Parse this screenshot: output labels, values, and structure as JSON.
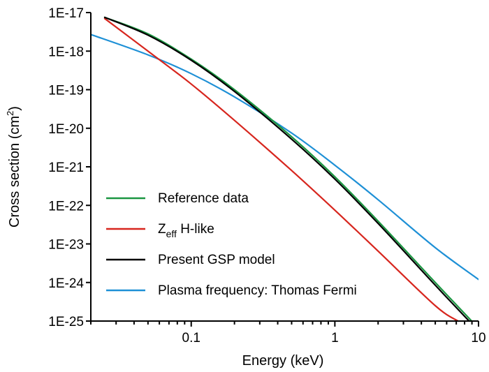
{
  "chart_data": {
    "type": "line",
    "xlabel": "Energy (keV)",
    "ylabel": {
      "prefix": "Cross section (cm",
      "sup": "2",
      "suffix": ")"
    },
    "x_scale": "log",
    "y_scale": "log",
    "xlim": [
      0.02,
      10
    ],
    "ylim": [
      1e-25,
      1e-17
    ],
    "x_ticks": [
      {
        "value": 0.1,
        "label": "0.1"
      },
      {
        "value": 1,
        "label": "1"
      },
      {
        "value": 10,
        "label": "10"
      }
    ],
    "y_ticks": [
      {
        "value": 1e-17,
        "label": "1E-17"
      },
      {
        "value": 1e-18,
        "label": "1E-18"
      },
      {
        "value": 1e-19,
        "label": "1E-19"
      },
      {
        "value": 1e-20,
        "label": "1E-20"
      },
      {
        "value": 1e-21,
        "label": "1E-21"
      },
      {
        "value": 1e-22,
        "label": "1E-22"
      },
      {
        "value": 1e-23,
        "label": "1E-23"
      },
      {
        "value": 1e-24,
        "label": "1E-24"
      },
      {
        "value": 1e-25,
        "label": "1E-25"
      }
    ],
    "grid": false,
    "legend_position": "bottom-left",
    "series": [
      {
        "key": "reference",
        "label": {
          "main": "Reference data"
        },
        "color": "#1a9641",
        "x": [
          0.025,
          0.05,
          0.1,
          0.2,
          0.5,
          1,
          2,
          5,
          10
        ],
        "y": [
          7.5e-18,
          2.8e-18,
          6.2e-19,
          1e-19,
          6e-21,
          5.5e-22,
          3.9e-23,
          1e-24,
          6.5e-26
        ]
      },
      {
        "key": "zeff",
        "label": {
          "main": "Z",
          "sub": "eff",
          "after": " H-like"
        },
        "color": "#d7261e",
        "x": [
          0.025,
          0.05,
          0.1,
          0.2,
          0.5,
          1,
          2,
          5,
          7.2
        ],
        "y": [
          7e-18,
          1e-18,
          1.4e-19,
          1.6e-20,
          8e-22,
          7.5e-23,
          6.5e-24,
          2.5e-25,
          1e-25
        ]
      },
      {
        "key": "gsp",
        "label": {
          "main": "Present GSP model"
        },
        "color": "#000000",
        "x": [
          0.025,
          0.05,
          0.1,
          0.2,
          0.5,
          1,
          2,
          5,
          10
        ],
        "y": [
          7.5e-18,
          2.6e-18,
          5.8e-19,
          9e-20,
          5.2e-21,
          4.8e-22,
          3.4e-23,
          8.5e-25,
          5.5e-26
        ]
      },
      {
        "key": "plasma",
        "label": {
          "main": "Plasma frequency: Thomas Fermi"
        },
        "color": "#1e90d6",
        "x": [
          0.02,
          0.05,
          0.1,
          0.2,
          0.5,
          1,
          2,
          5,
          10
        ],
        "y": [
          2.7e-18,
          8e-19,
          2.6e-19,
          6.5e-20,
          7.5e-21,
          1.1e-21,
          1.4e-22,
          8e-24,
          1.2e-24
        ]
      }
    ]
  }
}
